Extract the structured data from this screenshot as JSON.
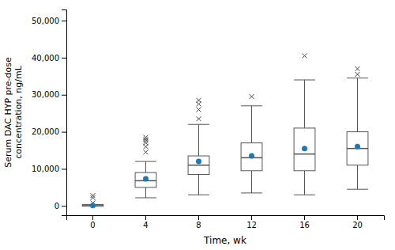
{
  "chart_data": {
    "type": "box",
    "xlabel": "Time, wk",
    "ylabel": "Serum DAC HYP pre-dose\nconcentration, ng/mL",
    "categories": [
      "0",
      "4",
      "8",
      "12",
      "16",
      "20"
    ],
    "boxes": [
      {
        "q1": 0,
        "median": 0,
        "q3": 300,
        "whisker_low": 0,
        "whisker_high": 400,
        "mean": 100,
        "outliers": [
          800,
          2200,
          2800
        ]
      },
      {
        "q1": 5000,
        "median": 6800,
        "q3": 9000,
        "whisker_low": 2200,
        "whisker_high": 12000,
        "mean": 7300,
        "outliers": [
          14500,
          16000,
          17000,
          17500,
          18000,
          18500
        ]
      },
      {
        "q1": 8500,
        "median": 11000,
        "q3": 13500,
        "whisker_low": 3000,
        "whisker_high": 22000,
        "mean": 12000,
        "outliers": [
          23500,
          26000,
          27500,
          28500
        ]
      },
      {
        "q1": 9500,
        "median": 13000,
        "q3": 17000,
        "whisker_low": 3500,
        "whisker_high": 27000,
        "mean": 13500,
        "outliers": [
          29500
        ]
      },
      {
        "q1": 9500,
        "median": 14000,
        "q3": 21000,
        "whisker_low": 3000,
        "whisker_high": 34000,
        "mean": 15500,
        "outliers": [
          40500
        ]
      },
      {
        "q1": 11000,
        "median": 15500,
        "q3": 20000,
        "whisker_low": 4500,
        "whisker_high": 34500,
        "mean": 16000,
        "outliers": [
          35500,
          37000
        ]
      }
    ],
    "ylim": [
      -2500,
      53000
    ],
    "yticks": [
      0,
      {
        "value": 10000,
        "label": "10,000"
      },
      {
        "value": 20000,
        "label": "20,000"
      },
      {
        "value": 30000,
        "label": "30,000"
      },
      {
        "value": 40000,
        "label": "40,000"
      },
      {
        "value": 50000,
        "label": "50,000"
      }
    ]
  }
}
